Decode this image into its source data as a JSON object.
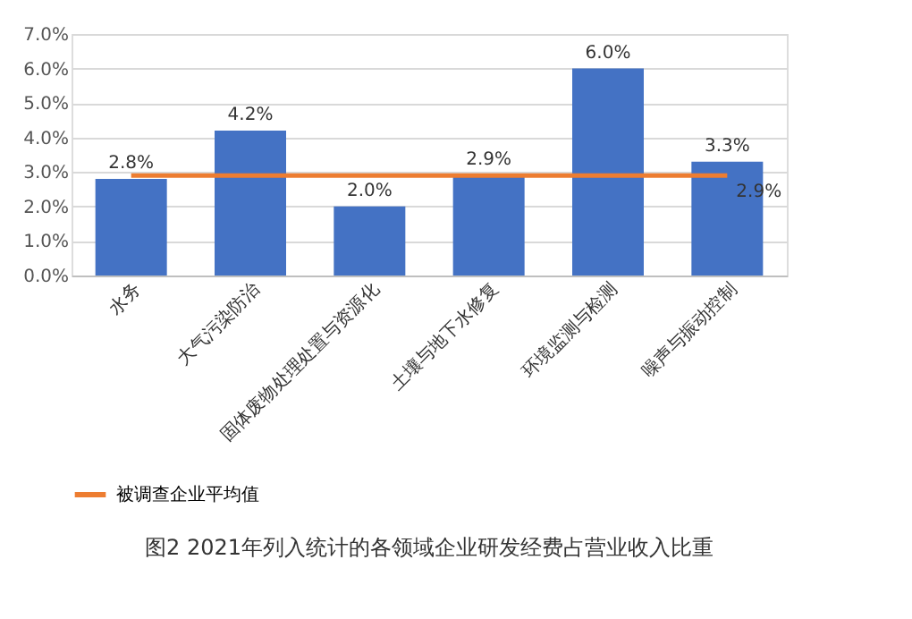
{
  "chart_data": {
    "type": "bar",
    "title": "图2 2021年列入统计的各领域企业研发经费占营业收入比重",
    "categories": [
      "水务",
      "大气污染防治",
      "固体废物处理处置与资源化",
      "土壤与地下水修复",
      "环境监测与检测",
      "噪声与振动控制"
    ],
    "series": [
      {
        "type": "bar",
        "color": "#4472c4",
        "values": [
          2.8,
          4.2,
          2.0,
          2.9,
          6.0,
          3.3
        ],
        "value_labels": [
          "2.8%",
          "4.2%",
          "2.0%",
          "2.9%",
          "6.0%",
          "3.3%"
        ]
      },
      {
        "type": "line",
        "name": "被调查企业平均值",
        "color": "#ed7d31",
        "values": [
          2.9,
          2.9,
          2.9,
          2.9,
          2.9,
          2.9
        ],
        "value_labels": [
          null,
          null,
          null,
          null,
          null,
          "2.9%"
        ]
      }
    ],
    "ylim": [
      0,
      7
    ],
    "yticks": [
      {
        "value": 0,
        "label": "0.0%"
      },
      {
        "value": 1,
        "label": "1.0%"
      },
      {
        "value": 2,
        "label": "2.0%"
      },
      {
        "value": 3,
        "label": "3.0%"
      },
      {
        "value": 4,
        "label": "4.0%"
      },
      {
        "value": 5,
        "label": "5.0%"
      },
      {
        "value": 6,
        "label": "6.0%"
      },
      {
        "value": 7,
        "label": "7.0%"
      }
    ],
    "grid": "y",
    "legend": "bottom"
  }
}
